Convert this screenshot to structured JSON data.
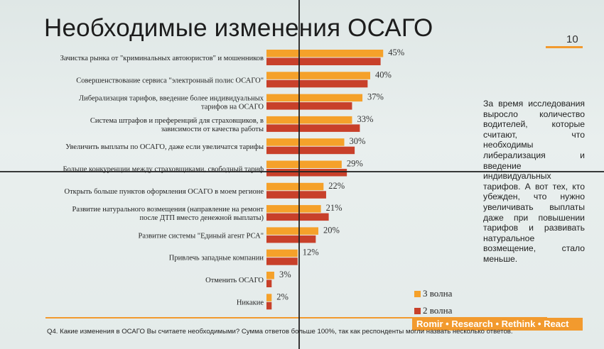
{
  "slide": {
    "title": "Необходимые изменения ОСАГО",
    "page_number": "10",
    "commentary": "За время исследования выросло количество водителей, которые считают, что необходимы либерализация и введение индивидуальных тарифов. А вот тех, кто убежден, что нужно увеличивать выплаты даже при повышении тарифов и развивать натуральное возмещение, стало меньше.",
    "brand": "Romir • Research • Rethink • React",
    "footnote": "Q4. Какие изменения в ОСАГО Вы считаете необходимыми? Сумма ответов больше 100%, так как респонденты могли назвать несколько ответов."
  },
  "colors": {
    "wave3": "#f5a12a",
    "wave2": "#c8402a",
    "accent": "#f29a2e"
  },
  "chart_data": {
    "type": "bar",
    "orientation": "horizontal",
    "categories": [
      "Зачистка рынка от \"криминальных автоюристов\" и мошенников",
      "Совершенствование сервиса \"электронный полис ОСАГО\"",
      "Либерализация тарифов, введение более индивидуальных тарифов на ОСАГО",
      "Система штрафов и преференций для страховщиков, в зависимости от качества работы",
      "Увеличить выплаты по ОСАГО, даже если увеличатся тарифы",
      "Больше конкуренции между страховщиками, свободный тариф",
      "Открыть больше пунктов оформления ОСАГО в моем регионе",
      "Развитие натурального возмещения (направление на ремонт после ДТП вместо денежной выплаты)",
      "Развитие системы \"Единый агент РСА\"",
      "Привлечь западные компании",
      "Отменить ОСАГО",
      "Никакие"
    ],
    "series": [
      {
        "name": "3 волна",
        "values": [
          45,
          40,
          37,
          33,
          30,
          29,
          22,
          21,
          20,
          12,
          3,
          2
        ]
      },
      {
        "name": "2 волна",
        "values": [
          44,
          39,
          33,
          36,
          34,
          31,
          23,
          24,
          19,
          12,
          2,
          2
        ]
      }
    ],
    "value_labels": [
      "45%",
      "40%",
      "37%",
      "33%",
      "30%",
      "29%",
      "22%",
      "21%",
      "20%",
      "12%",
      "3%",
      "2%"
    ],
    "xlim": [
      0,
      50
    ],
    "legend": [
      "3 волна",
      "2 волна"
    ],
    "legend_position": "bottom-right",
    "grid": false
  }
}
